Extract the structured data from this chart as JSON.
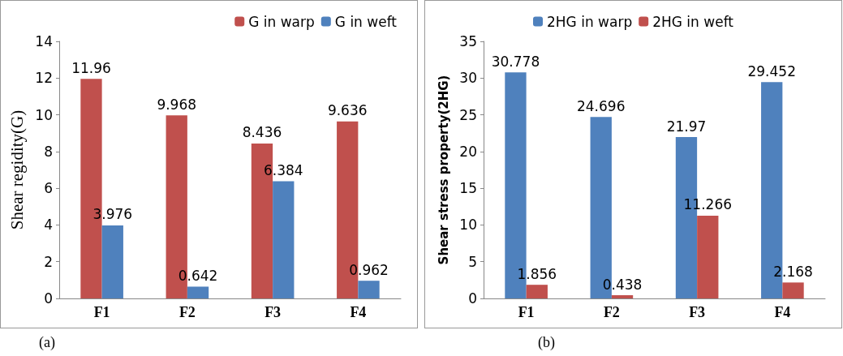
{
  "chart_data": [
    {
      "type": "bar",
      "ylabel": "Shear regidity(G)",
      "categories": [
        "F1",
        "F2",
        "F3",
        "F4"
      ],
      "series": [
        {
          "name": "G in warp",
          "color": "#c0504d",
          "values": [
            11.96,
            9.968,
            8.436,
            9.636
          ]
        },
        {
          "name": "G in weft",
          "color": "#4f81bd",
          "values": [
            3.976,
            0.642,
            6.384,
            0.962
          ]
        }
      ],
      "ylim": [
        0,
        14
      ],
      "yticks": [
        0,
        2,
        4,
        6,
        8,
        10,
        12,
        14
      ],
      "grid": false,
      "legend": "top right",
      "data_labels": true,
      "annotations": [
        "(a)"
      ]
    },
    {
      "type": "bar",
      "ylabel": "Shear stress property(2HG)",
      "categories": [
        "F1",
        "F2",
        "F3",
        "F4"
      ],
      "series": [
        {
          "name": "2HG in warp",
          "color": "#4f81bd",
          "values": [
            30.778,
            24.696,
            21.97,
            29.452
          ]
        },
        {
          "name": "2HG in weft",
          "color": "#c0504d",
          "values": [
            1.856,
            0.438,
            11.266,
            2.168
          ]
        }
      ],
      "ylim": [
        0,
        35
      ],
      "yticks": [
        0,
        5,
        10,
        15,
        20,
        25,
        30,
        35
      ],
      "grid": false,
      "legend": "top",
      "data_labels": true,
      "annotations": [
        "(b)"
      ]
    }
  ]
}
